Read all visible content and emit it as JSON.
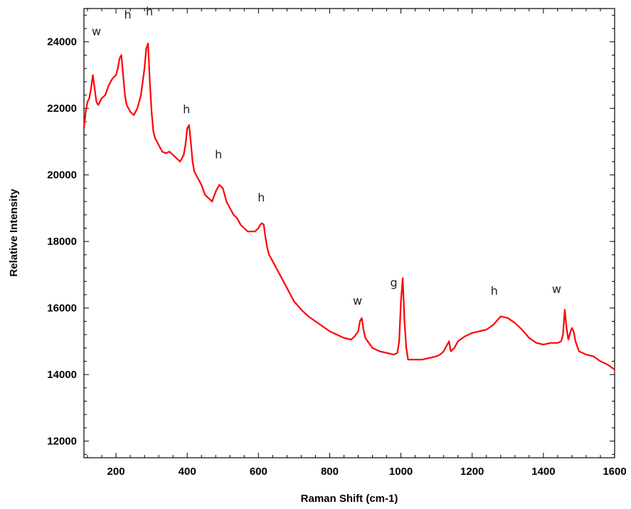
{
  "chart_data": {
    "type": "line",
    "title": "",
    "xlabel": "Raman Shift (cm-1)",
    "ylabel": "Relative Intensity",
    "xlim": [
      110,
      1600
    ],
    "ylim": [
      11500,
      25000
    ],
    "x_ticks": [
      200,
      400,
      600,
      800,
      1000,
      1200,
      1400,
      1600
    ],
    "y_ticks": [
      12000,
      14000,
      16000,
      18000,
      20000,
      22000,
      24000
    ],
    "grid": false,
    "legend": "none",
    "series": [
      {
        "color": "#ff0000",
        "x": [
          110,
          115,
          120,
          125,
          130,
          135,
          140,
          145,
          150,
          160,
          170,
          180,
          190,
          200,
          205,
          210,
          215,
          220,
          225,
          230,
          240,
          250,
          260,
          270,
          280,
          285,
          290,
          295,
          300,
          305,
          310,
          320,
          330,
          340,
          350,
          360,
          370,
          380,
          390,
          395,
          400,
          405,
          410,
          415,
          420,
          430,
          440,
          450,
          460,
          470,
          480,
          490,
          500,
          510,
          520,
          530,
          540,
          550,
          560,
          570,
          580,
          590,
          600,
          605,
          610,
          615,
          620,
          625,
          630,
          640,
          650,
          660,
          670,
          680,
          690,
          700,
          720,
          740,
          760,
          780,
          800,
          820,
          840,
          860,
          870,
          880,
          885,
          890,
          895,
          900,
          910,
          920,
          940,
          960,
          980,
          990,
          995,
          1000,
          1005,
          1010,
          1015,
          1020,
          1040,
          1060,
          1080,
          1100,
          1110,
          1120,
          1130,
          1135,
          1140,
          1150,
          1160,
          1180,
          1200,
          1220,
          1240,
          1260,
          1280,
          1300,
          1320,
          1340,
          1360,
          1380,
          1400,
          1420,
          1440,
          1450,
          1455,
          1460,
          1465,
          1470,
          1475,
          1480,
          1485,
          1490,
          1500,
          1520,
          1540,
          1560,
          1580,
          1600
        ],
        "y": [
          21400,
          21900,
          22200,
          22300,
          22600,
          23000,
          22600,
          22200,
          22100,
          22300,
          22400,
          22700,
          22900,
          23000,
          23200,
          23500,
          23600,
          23000,
          22400,
          22100,
          21900,
          21800,
          22000,
          22400,
          23200,
          23800,
          23950,
          22800,
          21900,
          21300,
          21100,
          20900,
          20700,
          20650,
          20700,
          20600,
          20500,
          20400,
          20600,
          20900,
          21400,
          21500,
          21000,
          20400,
          20100,
          19900,
          19700,
          19400,
          19300,
          19200,
          19500,
          19700,
          19600,
          19200,
          19000,
          18800,
          18700,
          18500,
          18400,
          18300,
          18300,
          18300,
          18400,
          18500,
          18550,
          18500,
          18100,
          17800,
          17600,
          17400,
          17200,
          17000,
          16800,
          16600,
          16400,
          16200,
          15950,
          15750,
          15600,
          15450,
          15300,
          15200,
          15100,
          15050,
          15150,
          15300,
          15600,
          15700,
          15350,
          15100,
          14950,
          14800,
          14700,
          14650,
          14600,
          14650,
          15000,
          16200,
          16900,
          15600,
          14800,
          14450,
          14450,
          14450,
          14500,
          14550,
          14600,
          14700,
          14900,
          15000,
          14700,
          14800,
          15000,
          15150,
          15250,
          15300,
          15350,
          15500,
          15750,
          15700,
          15550,
          15350,
          15100,
          14950,
          14900,
          14950,
          14950,
          15000,
          15200,
          15950,
          15400,
          15050,
          15250,
          15400,
          15300,
          15000,
          14700,
          14600,
          14550,
          14400,
          14300,
          14150
        ]
      }
    ],
    "annotations": [
      {
        "text": "w",
        "x": 145,
        "y": 24200
      },
      {
        "text": "h",
        "x": 233,
        "y": 24700
      },
      {
        "text": "h",
        "x": 294,
        "y": 24800
      },
      {
        "text": "h",
        "x": 398,
        "y": 21850
      },
      {
        "text": "h",
        "x": 488,
        "y": 20500
      },
      {
        "text": "h",
        "x": 608,
        "y": 19200
      },
      {
        "text": "w",
        "x": 878,
        "y": 16100
      },
      {
        "text": "g",
        "x": 980,
        "y": 16650
      },
      {
        "text": "h",
        "x": 1262,
        "y": 16400
      },
      {
        "text": "w",
        "x": 1437,
        "y": 16450
      }
    ]
  }
}
